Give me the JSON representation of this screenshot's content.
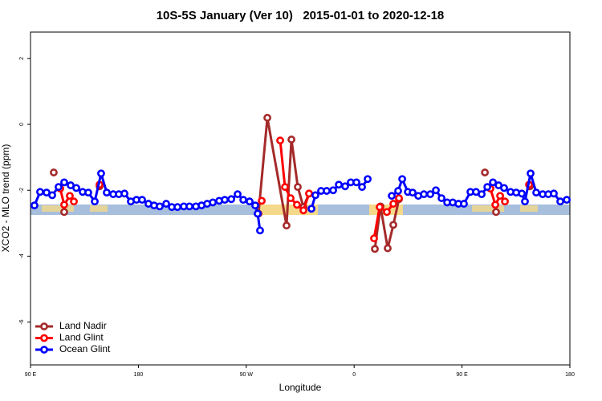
{
  "chart_data": {
    "type": "line",
    "title": "10S-5S January (Ver 10)   2015-01-01 to 2020-12-18",
    "xlabel": "Longitude",
    "ylabel": "XCO2 - MLO trend (ppm)",
    "xlim": [
      90,
      540
    ],
    "ylim": [
      -7.3,
      2.8
    ],
    "xticks": [
      {
        "value": 90,
        "label": "90 E"
      },
      180,
      {
        "value": 270,
        "label": "90 W"
      },
      {
        "value": 360,
        "label": "0"
      },
      {
        "value": 450,
        "label": "90 E"
      },
      {
        "value": 540,
        "label": "180"
      }
    ],
    "yticks": [
      -6,
      -4,
      -2,
      0,
      2
    ],
    "legend": "bottom-left",
    "series": [
      {
        "name": "Land Nadir",
        "color": "#a52a2a",
        "x": [
          109.4,
          null,
          118.1,
          null,
          147.6,
          null,
          280.2,
          287.6,
          303.6,
          307.7,
          313.0,
          317.7,
          322.4,
          null,
          377.3,
          382.0,
          388.0,
          392.7,
          397.4,
          null,
          469.1,
          null,
          478.4,
          null,
          506.6
        ],
        "values": [
          -1.46,
          null,
          -2.66,
          null,
          -1.88,
          null,
          -2.71,
          0.2,
          -3.07,
          -0.46,
          -1.9,
          -2.51,
          -2.1,
          null,
          -3.78,
          -2.49,
          -3.76,
          -3.05,
          -2.27,
          null,
          -1.46,
          null,
          -2.66,
          null,
          -1.88
        ]
      },
      {
        "name": "Land Glint",
        "color": "#ff0000",
        "x": [
          114.8,
          118.1,
          122.8,
          126.2,
          null,
          147.6,
          null,
          282.9,
          null,
          298.3,
          302.3,
          307.0,
          312.3,
          317.7,
          322.4,
          null,
          376.6,
          381.3,
          387.3,
          392.7,
          397.4,
          null,
          473.7,
          477.8,
          481.8,
          485.8,
          null,
          505.9
        ],
        "values": [
          -1.95,
          -2.44,
          -2.17,
          -2.34,
          null,
          -1.83,
          null,
          -2.32,
          null,
          -0.49,
          -1.9,
          -2.24,
          -2.44,
          -2.61,
          -2.1,
          null,
          -3.46,
          -2.51,
          -2.66,
          -2.41,
          -2.24,
          null,
          -1.95,
          -2.44,
          -2.17,
          -2.34,
          null,
          -1.83
        ]
      },
      {
        "name": "Ocean Glint",
        "color": "#0000ff",
        "x": [
          93.3,
          98.0,
          103.4,
          108.1,
          113.4,
          118.1,
          123.5,
          128.2,
          133.5,
          138.2,
          143.6,
          148.9,
          153.6,
          159.0,
          163.7,
          168.4,
          173.7,
          178.4,
          183.1,
          188.4,
          193.1,
          197.8,
          203.2,
          207.9,
          212.6,
          217.9,
          222.6,
          228.0,
          232.7,
          237.4,
          242.1,
          247.4,
          252.1,
          257.5,
          262.8,
          267.5,
          272.8,
          277.5,
          279.5,
          281.5,
          null,
          324.4,
          327.7,
          332.4,
          337.1,
          342.5,
          347.2,
          352.5,
          357.2,
          361.9,
          366.6,
          371.3,
          null,
          391.4,
          396.7,
          400.1,
          404.8,
          408.8,
          413.5,
          418.2,
          423.5,
          428.2,
          432.9,
          437.6,
          442.3,
          447.0,
          451.6,
          457.0,
          461.7,
          466.4,
          471.1,
          475.8,
          480.5,
          485.1,
          490.5,
          495.2,
          499.9,
          502.5,
          507.2,
          511.9,
          517.3,
          522.0,
          526.6,
          532.0,
          537.4
        ],
        "values": [
          -2.46,
          -2.05,
          -2.07,
          -2.15,
          -1.9,
          -1.76,
          -1.85,
          -1.93,
          -2.05,
          -2.07,
          -2.34,
          -1.49,
          -2.07,
          -2.12,
          -2.12,
          -2.1,
          -2.34,
          -2.29,
          -2.29,
          -2.41,
          -2.46,
          -2.49,
          -2.41,
          -2.51,
          -2.51,
          -2.49,
          -2.49,
          -2.49,
          -2.46,
          -2.41,
          -2.37,
          -2.32,
          -2.29,
          -2.27,
          -2.12,
          -2.29,
          -2.34,
          -2.46,
          -2.71,
          -3.22,
          null,
          -2.56,
          -2.15,
          -2.02,
          -2.02,
          -2.0,
          -1.83,
          -1.88,
          -1.76,
          -1.76,
          -1.9,
          -1.66,
          null,
          -2.17,
          -2.02,
          -1.66,
          -2.05,
          -2.07,
          -2.17,
          -2.12,
          -2.12,
          -2.0,
          -2.24,
          -2.37,
          -2.37,
          -2.41,
          -2.41,
          -2.05,
          -2.05,
          -2.12,
          -1.9,
          -1.76,
          -1.85,
          -1.93,
          -2.05,
          -2.07,
          -2.1,
          -2.34,
          -1.49,
          -2.07,
          -2.12,
          -2.12,
          -2.1,
          -2.34,
          -2.29
        ]
      }
    ]
  }
}
